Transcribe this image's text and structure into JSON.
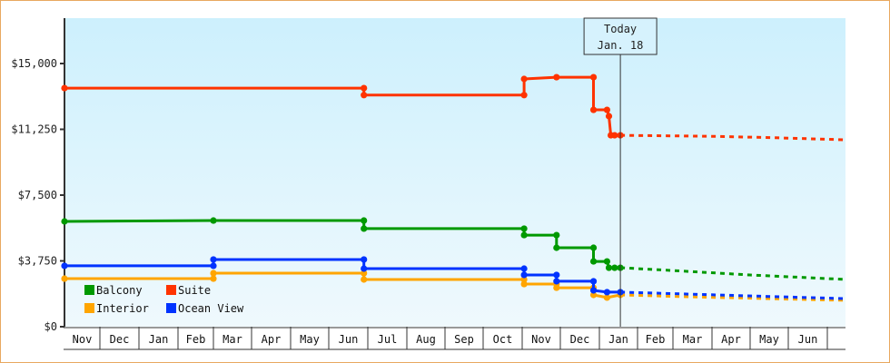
{
  "chart_data": {
    "type": "line",
    "title": "",
    "xlabel": "",
    "ylabel": "",
    "ylim": [
      0,
      17500
    ],
    "y_ticks": [
      {
        "value": 0,
        "label": "$0"
      },
      {
        "value": 3750,
        "label": "$3,750"
      },
      {
        "value": 7500,
        "label": "$7,500"
      },
      {
        "value": 11250,
        "label": "$11,250"
      },
      {
        "value": 15000,
        "label": "$15,000"
      }
    ],
    "x_months": [
      "Nov",
      "Dec",
      "Jan",
      "Feb",
      "Mar",
      "Apr",
      "May",
      "Jun",
      "Jul",
      "Aug",
      "Sep",
      "Oct",
      "Nov",
      "Dec",
      "Jan",
      "Feb",
      "Mar",
      "Apr",
      "May",
      "Jun"
    ],
    "grid": false,
    "background": "gradient light blue",
    "legend_position": "bottom-left inside",
    "today_marker": {
      "line1": "Today",
      "line2": "Jan. 18",
      "month_index": 14.55
    },
    "step_line": true,
    "series": [
      {
        "name": "Suite",
        "color": "#ff3300",
        "points": [
          {
            "m": 0.0,
            "v": 13600
          },
          {
            "m": 7.9,
            "v": 13600
          },
          {
            "m": 7.9,
            "v": 13200
          },
          {
            "m": 12.05,
            "v": 13200
          },
          {
            "m": 12.05,
            "v": 14120
          },
          {
            "m": 12.9,
            "v": 14220
          },
          {
            "m": 13.85,
            "v": 14220
          },
          {
            "m": 13.85,
            "v": 12360
          },
          {
            "m": 14.2,
            "v": 12360
          },
          {
            "m": 14.25,
            "v": 12000
          },
          {
            "m": 14.3,
            "v": 10910
          },
          {
            "m": 14.4,
            "v": 10910
          },
          {
            "m": 14.55,
            "v": 10910
          }
        ],
        "projection": [
          {
            "m": 14.55,
            "v": 10910
          },
          {
            "m": 17.0,
            "v": 10850
          },
          {
            "m": 18.5,
            "v": 10780
          },
          {
            "m": 20.5,
            "v": 10650
          }
        ]
      },
      {
        "name": "Balcony",
        "color": "#009900",
        "points": [
          {
            "m": 0.0,
            "v": 6000
          },
          {
            "m": 4.0,
            "v": 6050
          },
          {
            "m": 7.9,
            "v": 6050
          },
          {
            "m": 7.9,
            "v": 5590
          },
          {
            "m": 12.05,
            "v": 5590
          },
          {
            "m": 12.05,
            "v": 5220
          },
          {
            "m": 12.9,
            "v": 5220
          },
          {
            "m": 12.9,
            "v": 4500
          },
          {
            "m": 13.85,
            "v": 4500
          },
          {
            "m": 13.85,
            "v": 3720
          },
          {
            "m": 14.2,
            "v": 3720
          },
          {
            "m": 14.25,
            "v": 3360
          },
          {
            "m": 14.4,
            "v": 3360
          },
          {
            "m": 14.55,
            "v": 3360
          }
        ],
        "projection": [
          {
            "m": 14.55,
            "v": 3360
          },
          {
            "m": 16.0,
            "v": 3200
          },
          {
            "m": 18.0,
            "v": 2950
          },
          {
            "m": 20.5,
            "v": 2690
          }
        ]
      },
      {
        "name": "Ocean View",
        "color": "#0033ff",
        "points": [
          {
            "m": 0.0,
            "v": 3470
          },
          {
            "m": 4.0,
            "v": 3470
          },
          {
            "m": 4.0,
            "v": 3830
          },
          {
            "m": 7.9,
            "v": 3830
          },
          {
            "m": 7.9,
            "v": 3310
          },
          {
            "m": 12.05,
            "v": 3310
          },
          {
            "m": 12.05,
            "v": 2950
          },
          {
            "m": 12.9,
            "v": 2950
          },
          {
            "m": 12.9,
            "v": 2590
          },
          {
            "m": 13.85,
            "v": 2590
          },
          {
            "m": 13.85,
            "v": 2070
          },
          {
            "m": 14.2,
            "v": 1970
          },
          {
            "m": 14.55,
            "v": 1970
          }
        ],
        "projection": [
          {
            "m": 14.55,
            "v": 1970
          },
          {
            "m": 16.5,
            "v": 1850
          },
          {
            "m": 18.5,
            "v": 1720
          },
          {
            "m": 20.5,
            "v": 1600
          }
        ]
      },
      {
        "name": "Interior",
        "color": "#ffa500",
        "points": [
          {
            "m": 0.0,
            "v": 2740
          },
          {
            "m": 4.0,
            "v": 2740
          },
          {
            "m": 4.0,
            "v": 3050
          },
          {
            "m": 7.9,
            "v": 3050
          },
          {
            "m": 7.9,
            "v": 2690
          },
          {
            "m": 12.05,
            "v": 2690
          },
          {
            "m": 12.05,
            "v": 2430
          },
          {
            "m": 12.9,
            "v": 2430
          },
          {
            "m": 12.9,
            "v": 2220
          },
          {
            "m": 13.85,
            "v": 2220
          },
          {
            "m": 13.85,
            "v": 1810
          },
          {
            "m": 14.2,
            "v": 1660
          },
          {
            "m": 14.55,
            "v": 1810
          }
        ],
        "projection": [
          {
            "m": 14.55,
            "v": 1810
          },
          {
            "m": 16.5,
            "v": 1700
          },
          {
            "m": 18.5,
            "v": 1600
          },
          {
            "m": 20.5,
            "v": 1500
          }
        ]
      }
    ],
    "legend": [
      {
        "name": "Balcony",
        "color": "#009900"
      },
      {
        "name": "Suite",
        "color": "#ff3300"
      },
      {
        "name": "Interior",
        "color": "#ffa500"
      },
      {
        "name": "Ocean View",
        "color": "#0033ff"
      }
    ]
  }
}
